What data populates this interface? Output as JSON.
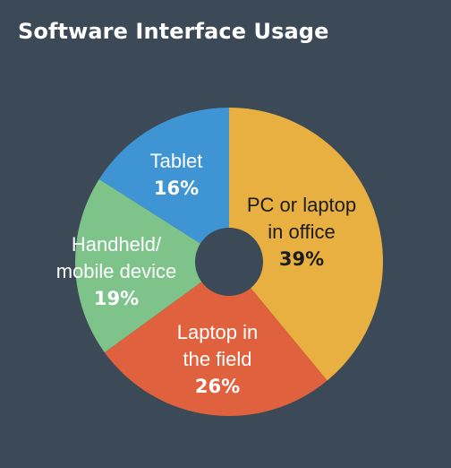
{
  "chart_data": {
    "type": "pie",
    "title": "Software Interface Usage",
    "slices": [
      {
        "label": [
          "PC or laptop",
          "in office"
        ],
        "value": 39,
        "value_label": "39%",
        "color": "#e8b040",
        "text_color": "#1c1c1c"
      },
      {
        "label": [
          "Laptop in",
          "the field"
        ],
        "value": 26,
        "value_label": "26%",
        "color": "#e0613e",
        "text_color": "#ffffff"
      },
      {
        "label": [
          "Handheld/",
          "mobile device"
        ],
        "value": 19,
        "value_label": "19%",
        "color": "#7dc38a",
        "text_color": "#ffffff"
      },
      {
        "label": [
          "Tablet"
        ],
        "value": 16,
        "value_label": "16%",
        "color": "#3f95d3",
        "text_color": "#ffffff"
      }
    ],
    "donut": true,
    "background_color": "#3c4957"
  }
}
